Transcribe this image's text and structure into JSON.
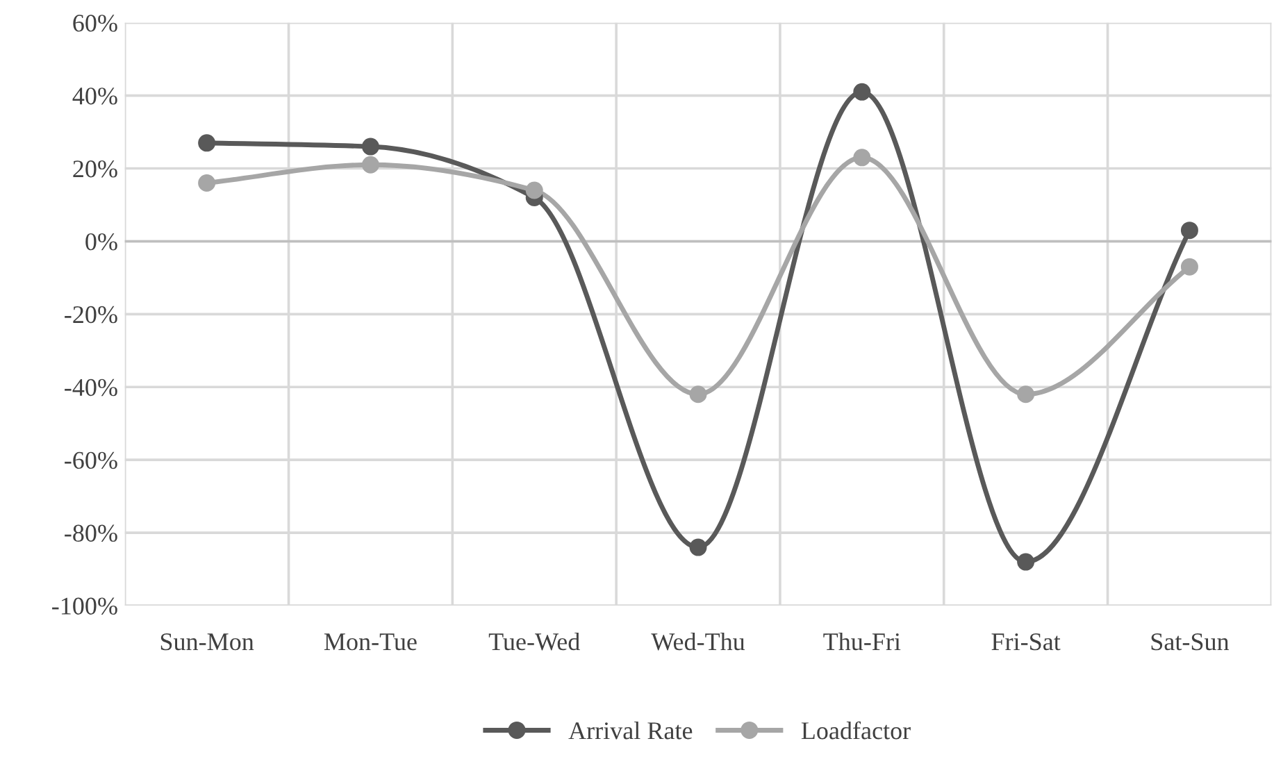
{
  "chart_data": {
    "type": "line",
    "categories": [
      "Sun-Mon",
      "Mon-Tue",
      "Tue-Wed",
      "Wed-Thu",
      "Thu-Fri",
      "Fri-Sat",
      "Sat-Sun"
    ],
    "series": [
      {
        "name": "Arrival Rate",
        "color": "#595959",
        "values": [
          27,
          26,
          12,
          -84,
          41,
          -88,
          3
        ]
      },
      {
        "name": "Loadfactor",
        "color": "#a6a6a6",
        "values": [
          16,
          21,
          14,
          -42,
          23,
          -42,
          -7
        ]
      }
    ],
    "ylim": [
      -100,
      60
    ],
    "yticks": [
      {
        "value": -100,
        "label": "-100%"
      },
      {
        "value": -80,
        "label": "-80%"
      },
      {
        "value": -60,
        "label": "-60%"
      },
      {
        "value": -40,
        "label": "-40%"
      },
      {
        "value": -20,
        "label": "-20%"
      },
      {
        "value": 0,
        "label": "0%"
      },
      {
        "value": 20,
        "label": "20%"
      },
      {
        "value": 40,
        "label": "40%"
      },
      {
        "value": 60,
        "label": "60%"
      }
    ],
    "grid": true,
    "legend": "bottom",
    "marker": "circle",
    "line_style": "solid"
  }
}
